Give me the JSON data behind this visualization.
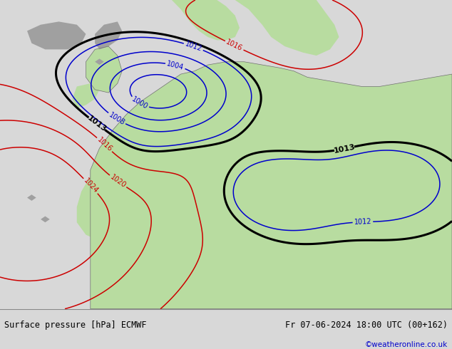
{
  "title_left": "Surface pressure [hPa] ECMWF",
  "title_right": "Fr 07-06-2024 18:00 UTC (00+162)",
  "credit": "©weatheronline.co.uk",
  "ocean_color": "#e8e8e8",
  "land_green": "#b8dca0",
  "land_gray": "#a0a0a0",
  "footer_bg": "#d8d8d8",
  "fig_width": 6.34,
  "fig_height": 4.9,
  "dpi": 100,
  "black_lw": 2.2,
  "blue_lw": 1.1,
  "red_lw": 1.1,
  "black_color": "#000000",
  "blue_color": "#0000cc",
  "red_color": "#cc0000"
}
